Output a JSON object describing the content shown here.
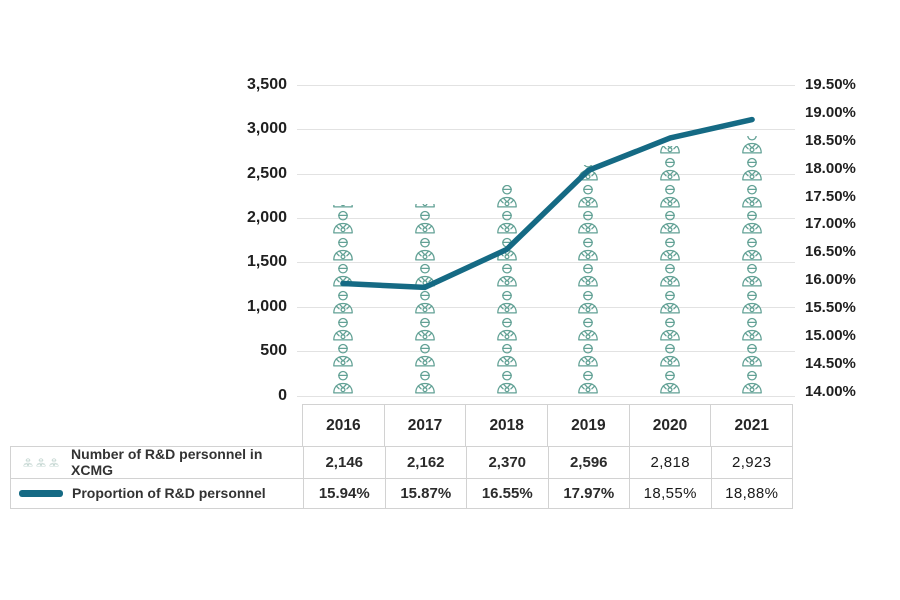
{
  "chart_data": {
    "type": "pictogram-bar+line",
    "categories": [
      "2016",
      "2017",
      "2018",
      "2019",
      "2020",
      "2021"
    ],
    "series": [
      {
        "name": "Number of R&D personnel in XCMG",
        "type": "pictogram-bar",
        "axis": "left",
        "icon": "person-icon",
        "units_per_icon": 300,
        "color": "#62a195",
        "values": [
          2146,
          2162,
          2370,
          2596,
          2818,
          2923
        ],
        "display_values": [
          "2,146",
          "2,162",
          "2,370",
          "2,596",
          "2,818",
          "2,923"
        ]
      },
      {
        "name": "Proportion of R&D personnel",
        "type": "line",
        "axis": "right",
        "color": "#156a84",
        "values": [
          15.94,
          15.87,
          16.55,
          17.97,
          18.55,
          18.88
        ],
        "display_values": [
          "15.94%",
          "15.87%",
          "16.55%",
          "17.97%",
          "18,55%",
          "18,88%"
        ]
      }
    ],
    "left_axis": {
      "min": 0,
      "max": 3500,
      "step": 500,
      "tick_labels": [
        "3,500",
        "3,000",
        "2,500",
        "2,000",
        "1,500",
        "1,000",
        "500",
        "0"
      ]
    },
    "right_axis": {
      "min": 14.0,
      "max": 19.5,
      "step": 0.5,
      "tick_labels": [
        "19.50%",
        "19.00%",
        "18.50%",
        "18.00%",
        "17.50%",
        "17.00%",
        "16.50%",
        "16.00%",
        "15.50%",
        "15.00%",
        "14.50%",
        "14.00%"
      ]
    },
    "grid": true,
    "legend_position": "table-left",
    "title": ""
  },
  "colors": {
    "bar_icon": "#62a195",
    "line": "#156a84",
    "legend_mini_icon": "#9bbab2",
    "gridline": "#e2e2e2",
    "table_border": "#d2d2d2"
  }
}
